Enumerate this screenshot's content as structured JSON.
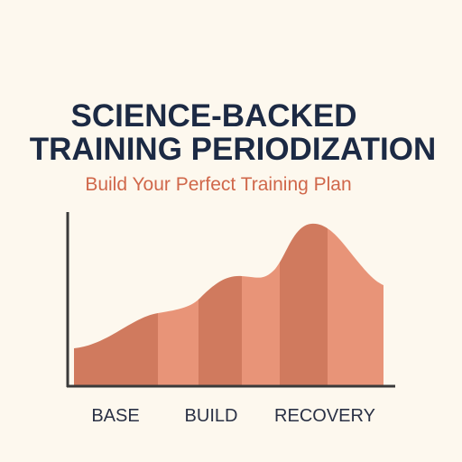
{
  "title": [
    "SCIENCE-BACKED",
    "TRAINING PERIODIZATION"
  ],
  "subtitle": "Build Your Perfect Training Plan",
  "labels": [
    "BASE",
    "BUILD",
    "RECOVERY"
  ]
}
